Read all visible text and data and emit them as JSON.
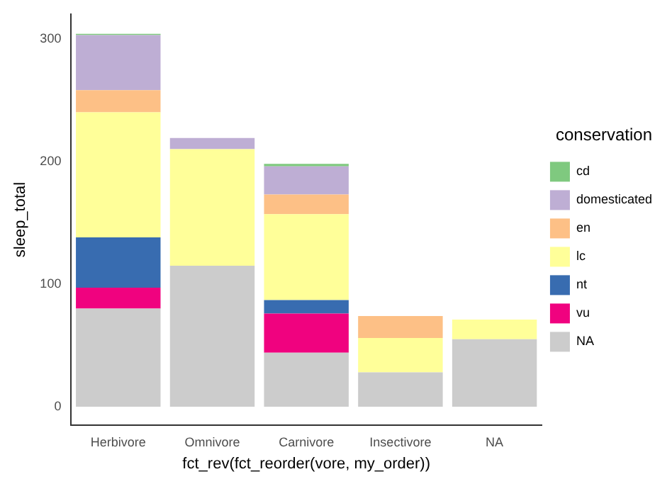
{
  "chart_data": {
    "type": "bar",
    "stacked": true,
    "xlabel": "fct_rev(fct_reorder(vore, my_order))",
    "ylabel": "sleep_total",
    "legend_title": "conservation",
    "legend": "right",
    "grid": false,
    "categories": [
      "Herbivore",
      "Omnivore",
      "Carnivore",
      "Insectivore",
      "NA"
    ],
    "ylim": [
      -15,
      320
    ],
    "yticks": [
      0,
      100,
      200,
      300
    ],
    "series": [
      {
        "name": "NA",
        "color": "#cccccc",
        "values": [
          80,
          115,
          44,
          28,
          55
        ]
      },
      {
        "name": "vu",
        "color": "#f0027f",
        "values": [
          17,
          null,
          32,
          null,
          null
        ]
      },
      {
        "name": "nt",
        "color": "#386cb0",
        "values": [
          41,
          null,
          11,
          null,
          null
        ]
      },
      {
        "name": "lc",
        "color": "#ffff99",
        "values": [
          102,
          95,
          70,
          28,
          16
        ]
      },
      {
        "name": "en",
        "color": "#fdc086",
        "values": [
          18,
          null,
          16,
          18,
          null
        ]
      },
      {
        "name": "domesticated",
        "color": "#beaed4",
        "values": [
          45,
          9,
          23,
          null,
          null
        ]
      },
      {
        "name": "cd",
        "color": "#7fc97f",
        "values": [
          1,
          null,
          2,
          null,
          null
        ]
      }
    ]
  }
}
